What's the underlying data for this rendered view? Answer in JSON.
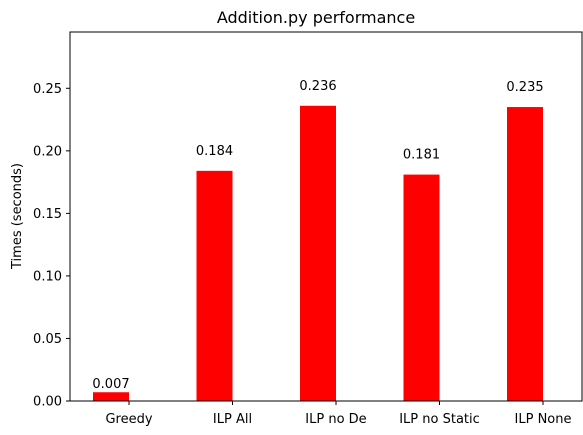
{
  "chart_data": {
    "type": "bar",
    "title": "Addition.py performance",
    "xlabel": "",
    "ylabel": "Times (seconds)",
    "categories": [
      "Greedy",
      "ILP All",
      "ILP no De",
      "ILP no Static",
      "ILP None"
    ],
    "values": [
      0.007,
      0.184,
      0.236,
      0.181,
      0.235
    ],
    "data_labels": [
      "0.007",
      "0.184",
      "0.236",
      "0.181",
      "0.235"
    ],
    "ylim": [
      0,
      0.295
    ],
    "yticks": [
      0.0,
      0.05,
      0.1,
      0.15,
      0.2,
      0.25
    ],
    "ytick_labels": [
      "0.00",
      "0.05",
      "0.10",
      "0.15",
      "0.20",
      "0.25"
    ],
    "bar_color": "#ff0000",
    "grid": false
  }
}
